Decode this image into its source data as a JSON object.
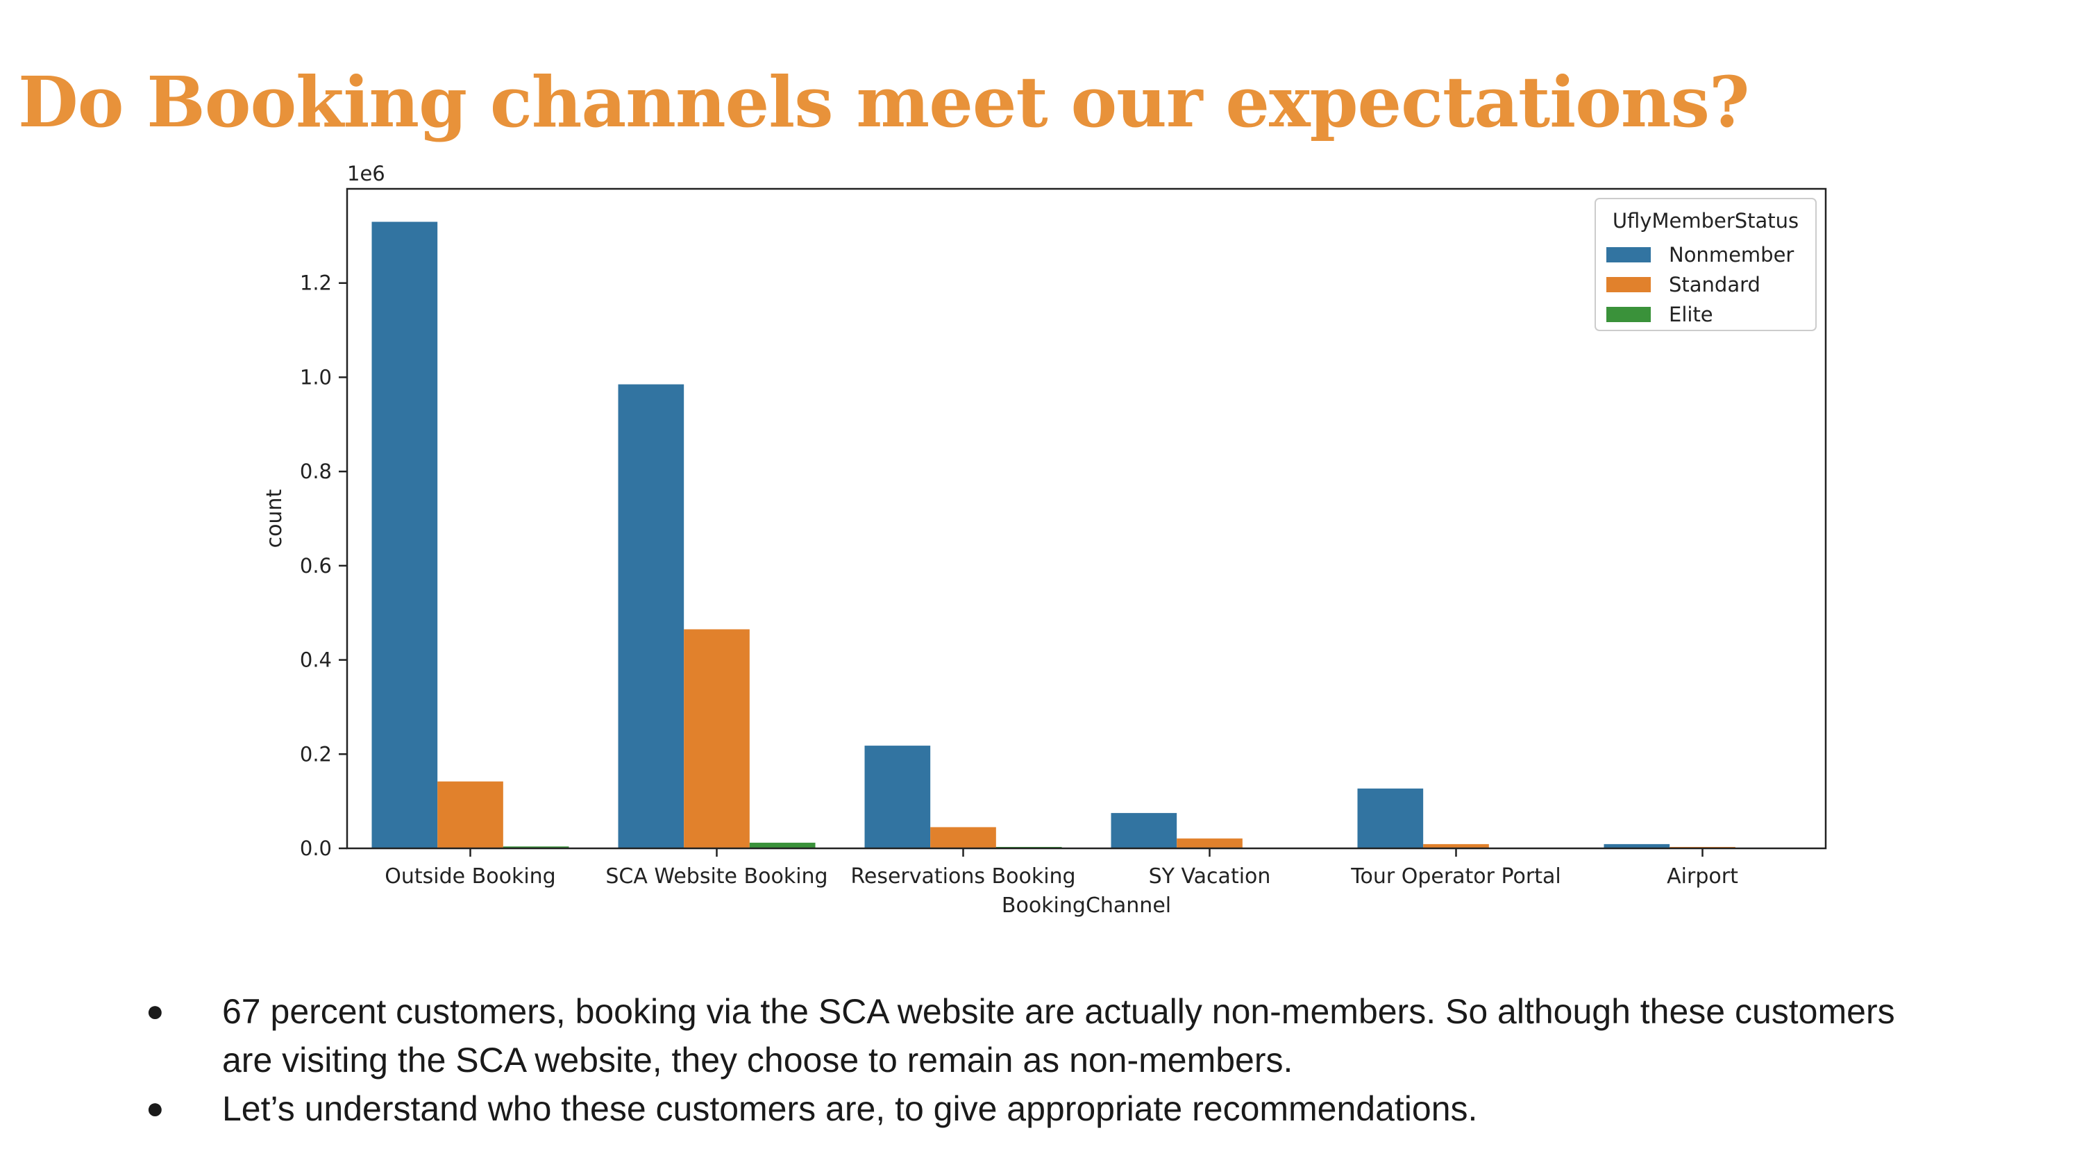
{
  "slide": {
    "title": "Do Booking channels meet our expectations?",
    "bullets": [
      "67 percent customers, booking via the SCA website are actually non-members. So although these customers are visiting the SCA website, they choose to remain as non-members.",
      "Let’s understand who these customers are, to give appropriate recommendations."
    ]
  },
  "chart_data": {
    "type": "bar",
    "title": "",
    "xlabel": "BookingChannel",
    "ylabel": "count",
    "scale_label": "1e6",
    "categories": [
      "Outside Booking",
      "SCA Website Booking",
      "Reservations Booking",
      "SY Vacation",
      "Tour Operator Portal",
      "Airport"
    ],
    "series": [
      {
        "name": "Nonmember",
        "color": "#3274a1",
        "values": [
          1.33,
          0.985,
          0.218,
          0.075,
          0.127,
          0.009
        ]
      },
      {
        "name": "Standard",
        "color": "#e1812c",
        "values": [
          0.142,
          0.465,
          0.045,
          0.021,
          0.009,
          0.003
        ]
      },
      {
        "name": "Elite",
        "color": "#3a923a",
        "values": [
          0.004,
          0.012,
          0.003,
          0.0,
          0.0,
          0.0
        ]
      }
    ],
    "ylim": [
      0,
      1.4
    ],
    "yticks": [
      "0.0",
      "0.2",
      "0.4",
      "0.6",
      "0.8",
      "1.0",
      "1.2"
    ],
    "grid": false,
    "legend": {
      "title": "UflyMemberStatus",
      "position": "top-right"
    }
  }
}
